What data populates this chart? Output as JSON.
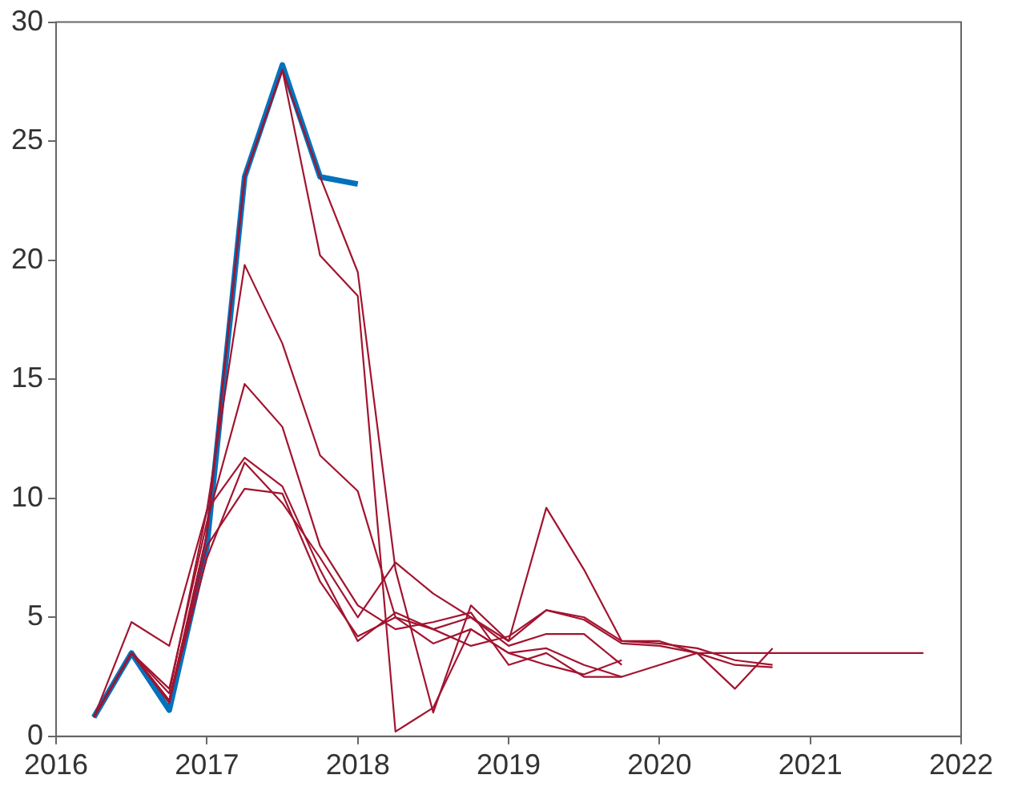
{
  "chart_data": {
    "type": "line",
    "xlim": [
      2016,
      2022
    ],
    "xticks": [
      2016,
      2017,
      2018,
      2019,
      2020,
      2021,
      2022
    ],
    "ylim": [
      0,
      30
    ],
    "yticks": [
      0,
      5,
      10,
      15,
      20,
      25,
      30
    ],
    "grid": false,
    "legend": false,
    "marker": "none",
    "line_style": "solid",
    "series": [
      {
        "color": "#a2142f",
        "x": [
          2016.25,
          2016.5,
          2016.75,
          2017,
          2017.25,
          2017.5,
          2017.75,
          2018,
          2018.25,
          2018.5,
          2018.75,
          2019,
          2019.25,
          2019.5,
          2019.75,
          2020,
          2020.25,
          2020.5,
          2020.75
        ],
        "values": [
          0.8,
          3.5,
          1.5,
          8.5,
          23.5,
          28,
          23.5,
          19.5,
          7,
          1,
          5.5,
          4,
          9.6,
          7,
          4,
          3.9,
          3.7,
          3.2,
          3
        ]
      },
      {
        "color": "#a2142f",
        "x": [
          2016.25,
          2016.5,
          2016.75,
          2017,
          2017.25,
          2017.5,
          2017.75,
          2018,
          2018.25,
          2018.5,
          2018.75,
          2019,
          2019.25,
          2019.5,
          2019.75,
          2020,
          2020.25,
          2020.5,
          2020.75
        ],
        "values": [
          0.8,
          4.8,
          3.8,
          9.5,
          19.8,
          16.5,
          11.8,
          10.3,
          5,
          4.5,
          3.8,
          4.2,
          5.3,
          4.9,
          3.9,
          3.8,
          3.5,
          3,
          2.9
        ]
      },
      {
        "color": "#a2142f",
        "x": [
          2016.25,
          2016.5,
          2016.75,
          2017,
          2017.25,
          2017.5,
          2017.75,
          2018,
          2018.25,
          2018.5,
          2018.75,
          2019,
          2019.25,
          2019.5,
          2019.75,
          2020,
          2020.25,
          2020.5,
          2020.75,
          2021,
          2021.25,
          2021.5,
          2021.75
        ],
        "values": [
          0.8,
          3.5,
          2,
          9,
          14.8,
          13,
          8,
          5.5,
          4.5,
          4.8,
          5.2,
          3,
          3.5,
          2.5,
          2.5,
          3,
          3.5,
          3.5,
          3.5,
          3.5,
          3.5,
          3.5,
          3.5
        ]
      },
      {
        "color": "#a2142f",
        "x": [
          2016.25,
          2016.5,
          2016.75,
          2017,
          2017.25,
          2017.5,
          2017.75,
          2018,
          2018.25,
          2018.5,
          2018.75,
          2019,
          2019.25,
          2019.5,
          2019.75,
          2020,
          2020.25,
          2020.5,
          2020.75
        ],
        "values": [
          0.8,
          3.5,
          1.8,
          9.5,
          11.7,
          10.5,
          7,
          4,
          5.2,
          4.5,
          5,
          4,
          5.3,
          5,
          4,
          4,
          3.5,
          2,
          3.7
        ]
      },
      {
        "color": "#a2142f",
        "x": [
          2016.25,
          2016.5,
          2016.75,
          2017,
          2017.25,
          2017.5,
          2017.75,
          2018,
          2018.25,
          2018.5,
          2018.75,
          2019,
          2019.25,
          2019.5,
          2019.75
        ],
        "values": [
          0.8,
          3.5,
          1.5,
          8,
          10.4,
          10.2,
          6.5,
          4.2,
          5,
          3.9,
          4.5,
          3.5,
          3,
          2.6,
          3.2
        ]
      },
      {
        "color": "#a2142f",
        "x": [
          2016.25,
          2016.5,
          2016.75,
          2017,
          2017.25,
          2017.5,
          2017.75,
          2018,
          2018.25,
          2018.5,
          2018.75,
          2019,
          2019.25,
          2019.5,
          2019.75
        ],
        "values": [
          0.8,
          3.5,
          1.5,
          7.5,
          11.5,
          9.8,
          7.5,
          5,
          7.3,
          6,
          5,
          3.8,
          4.3,
          4.3,
          3
        ]
      },
      {
        "color": "#a2142f",
        "x": [
          2016.25,
          2016.5,
          2016.75,
          2017,
          2017.25,
          2017.5,
          2017.75,
          2018,
          2018.25,
          2018.5,
          2018.75,
          2019,
          2019.25,
          2019.5,
          2019.75
        ],
        "values": [
          0.8,
          3.5,
          1.4,
          8.5,
          23.5,
          28,
          20.2,
          18.5,
          0.2,
          1.2,
          4.5,
          3.5,
          3.7,
          3,
          2.5
        ]
      },
      {
        "color": "#0072bd",
        "x": [
          2016.25,
          2016.5,
          2016.75,
          2017,
          2017.25,
          2017.5,
          2017.75,
          2018
        ],
        "values": [
          0.8,
          3.5,
          1.1,
          8,
          23.5,
          28.2,
          23.5,
          23.2
        ]
      }
    ]
  }
}
